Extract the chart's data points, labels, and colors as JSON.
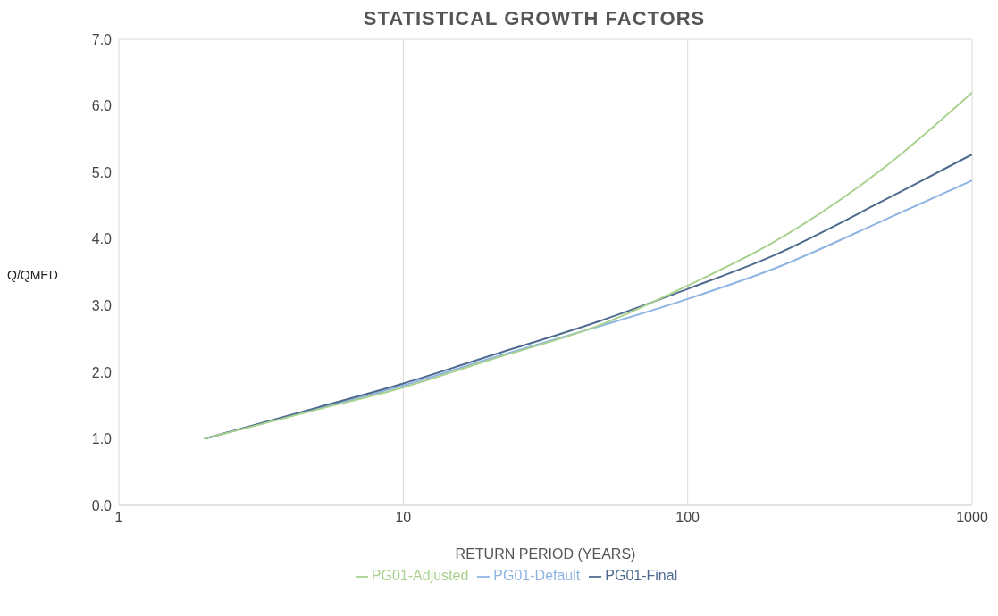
{
  "chart_data": {
    "type": "line",
    "title": "STATISTICAL GROWTH FACTORS",
    "xlabel": "RETURN PERIOD (YEARS)",
    "ylabel": "Q/QMED",
    "x": [
      2,
      5,
      10,
      20,
      50,
      100,
      200,
      500,
      1000
    ],
    "series": [
      {
        "name": "PG01-Default",
        "color": "#8eb4e3",
        "values": [
          1.0,
          1.45,
          1.8,
          2.2,
          2.7,
          3.1,
          3.55,
          4.3,
          4.88
        ]
      },
      {
        "name": "PG01-Final",
        "color": "#4f6a8f",
        "values": [
          1.0,
          1.47,
          1.83,
          2.24,
          2.78,
          3.25,
          3.75,
          4.6,
          5.27
        ]
      },
      {
        "name": "PG01-Adjusted",
        "color": "#a9d18e",
        "values": [
          1.0,
          1.44,
          1.77,
          2.18,
          2.72,
          3.3,
          3.95,
          5.1,
          6.2
        ]
      }
    ],
    "log": "x",
    "xlim": [
      1,
      1000
    ],
    "xticks": [
      1,
      10,
      100,
      1000
    ],
    "ylim": [
      0,
      7
    ],
    "yticks": [
      {
        "value": 0,
        "label": "0.0"
      },
      {
        "value": 1,
        "label": "1.0"
      },
      {
        "value": 2,
        "label": "2.0"
      },
      {
        "value": 3,
        "label": "3.0"
      },
      {
        "value": 4,
        "label": "4.0"
      },
      {
        "value": 5,
        "label": "5.0"
      },
      {
        "value": 6,
        "label": "6.0"
      },
      {
        "value": 7,
        "label": "7.0"
      }
    ],
    "grid": true,
    "legend": "bottom"
  }
}
